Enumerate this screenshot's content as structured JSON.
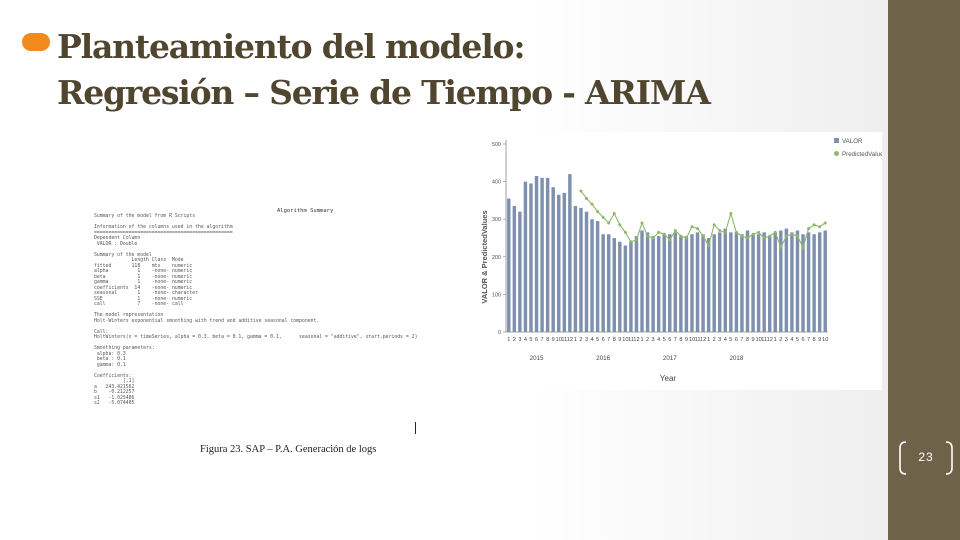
{
  "slide": {
    "title_line1": "Planteamiento del modelo:",
    "title_line2": "Regresión – Serie de Tiempo - ARIMA",
    "caption": "Figura 23. SAP – P.A. Generación de logs",
    "page_number": "23",
    "accent_color": "#f08a1c",
    "sidebar_color": "#6e6249",
    "title_color": "#50452f",
    "bullet_icon": "orange-oval-bullet"
  },
  "sap_log": {
    "title": "Algorithm Summary",
    "lines": [
      "Summary of the model from R Scripts",
      "",
      "Information of the columns used in the algorithm",
      "================================================",
      "Dependent Column",
      " VALOR : Double",
      "",
      "Summary of the model",
      "             Length Class  Mode",
      "fitted       118    mts    numeric",
      "alpha          1    -none- numeric",
      "beta           1    -none- numeric",
      "gamma          1    -none- numeric",
      "coefficients  14    -none- numeric",
      "seasonal       1    -none- character",
      "SSE            1    -none- numeric",
      "call           7    -none- call",
      "",
      "The model representation",
      "Holt-Winters exponential smoothing with trend and additive seasonal component.",
      "",
      "Call:",
      "HoltWinters(x = timeSeries, alpha = 0.3, beta = 0.1, gamma = 0.1,      seasonal = \"additive\", start.periods = 2)",
      "",
      "Smoothing parameters:",
      " alpha: 0.3",
      " beta : 0.1",
      " gamma: 0.1",
      "",
      "Coefficients:",
      "          [,1]",
      "a   243.421562",
      "b    -0.212257",
      "s1   -1.025486",
      "s2   -5.074405"
    ]
  },
  "chart_data": {
    "type": "bar",
    "ylabel": "VALOR & PredictedValues",
    "xlabel": "Year",
    "ylim": [
      0,
      500
    ],
    "yticks": [
      0,
      100,
      200,
      300,
      400,
      500
    ],
    "legend_position": "top-right",
    "grid": false,
    "bar_color": "#7e90ae",
    "line_color": "#8db86a",
    "legend": [
      "VALOR",
      "PredictedValue"
    ],
    "month_labels": [
      "1",
      "2",
      "3",
      "4",
      "5",
      "6",
      "7",
      "8",
      "9",
      "10",
      "11",
      "12",
      "1",
      "2",
      "3",
      "4",
      "5",
      "6",
      "7",
      "8",
      "9",
      "10",
      "11",
      "12",
      "1",
      "2",
      "3",
      "4",
      "5",
      "6",
      "7",
      "8",
      "9",
      "10",
      "11",
      "12",
      "1",
      "2",
      "3",
      "4",
      "5",
      "6",
      "7",
      "8",
      "9",
      "10",
      "11",
      "12",
      "1",
      "2",
      "3",
      "4",
      "5",
      "6",
      "7",
      "8",
      "9",
      "10"
    ],
    "year_labels": [
      {
        "label": "2015",
        "index": 5
      },
      {
        "label": "2016",
        "index": 17
      },
      {
        "label": "2017",
        "index": 29
      },
      {
        "label": "2018",
        "index": 41
      }
    ],
    "series": [
      {
        "name": "VALOR",
        "kind": "bar",
        "values": [
          355,
          335,
          320,
          400,
          395,
          415,
          410,
          410,
          385,
          365,
          370,
          420,
          335,
          330,
          320,
          300,
          295,
          260,
          260,
          250,
          240,
          230,
          240,
          255,
          270,
          265,
          255,
          255,
          260,
          260,
          265,
          255,
          255,
          260,
          265,
          260,
          250,
          260,
          265,
          275,
          265,
          265,
          260,
          270,
          260,
          260,
          265,
          255,
          265,
          270,
          275,
          265,
          270,
          260,
          265,
          260,
          265,
          270
        ]
      },
      {
        "name": "PredictedValue",
        "kind": "line",
        "values": [
          null,
          null,
          null,
          null,
          null,
          null,
          null,
          null,
          null,
          null,
          null,
          null,
          null,
          375,
          355,
          340,
          320,
          305,
          290,
          315,
          285,
          265,
          240,
          245,
          290,
          255,
          250,
          265,
          260,
          245,
          270,
          255,
          250,
          280,
          275,
          255,
          230,
          285,
          270,
          265,
          315,
          265,
          255,
          250,
          260,
          265,
          250,
          255,
          265,
          225,
          255,
          260,
          255,
          225,
          275,
          285,
          280,
          290
        ]
      }
    ]
  }
}
